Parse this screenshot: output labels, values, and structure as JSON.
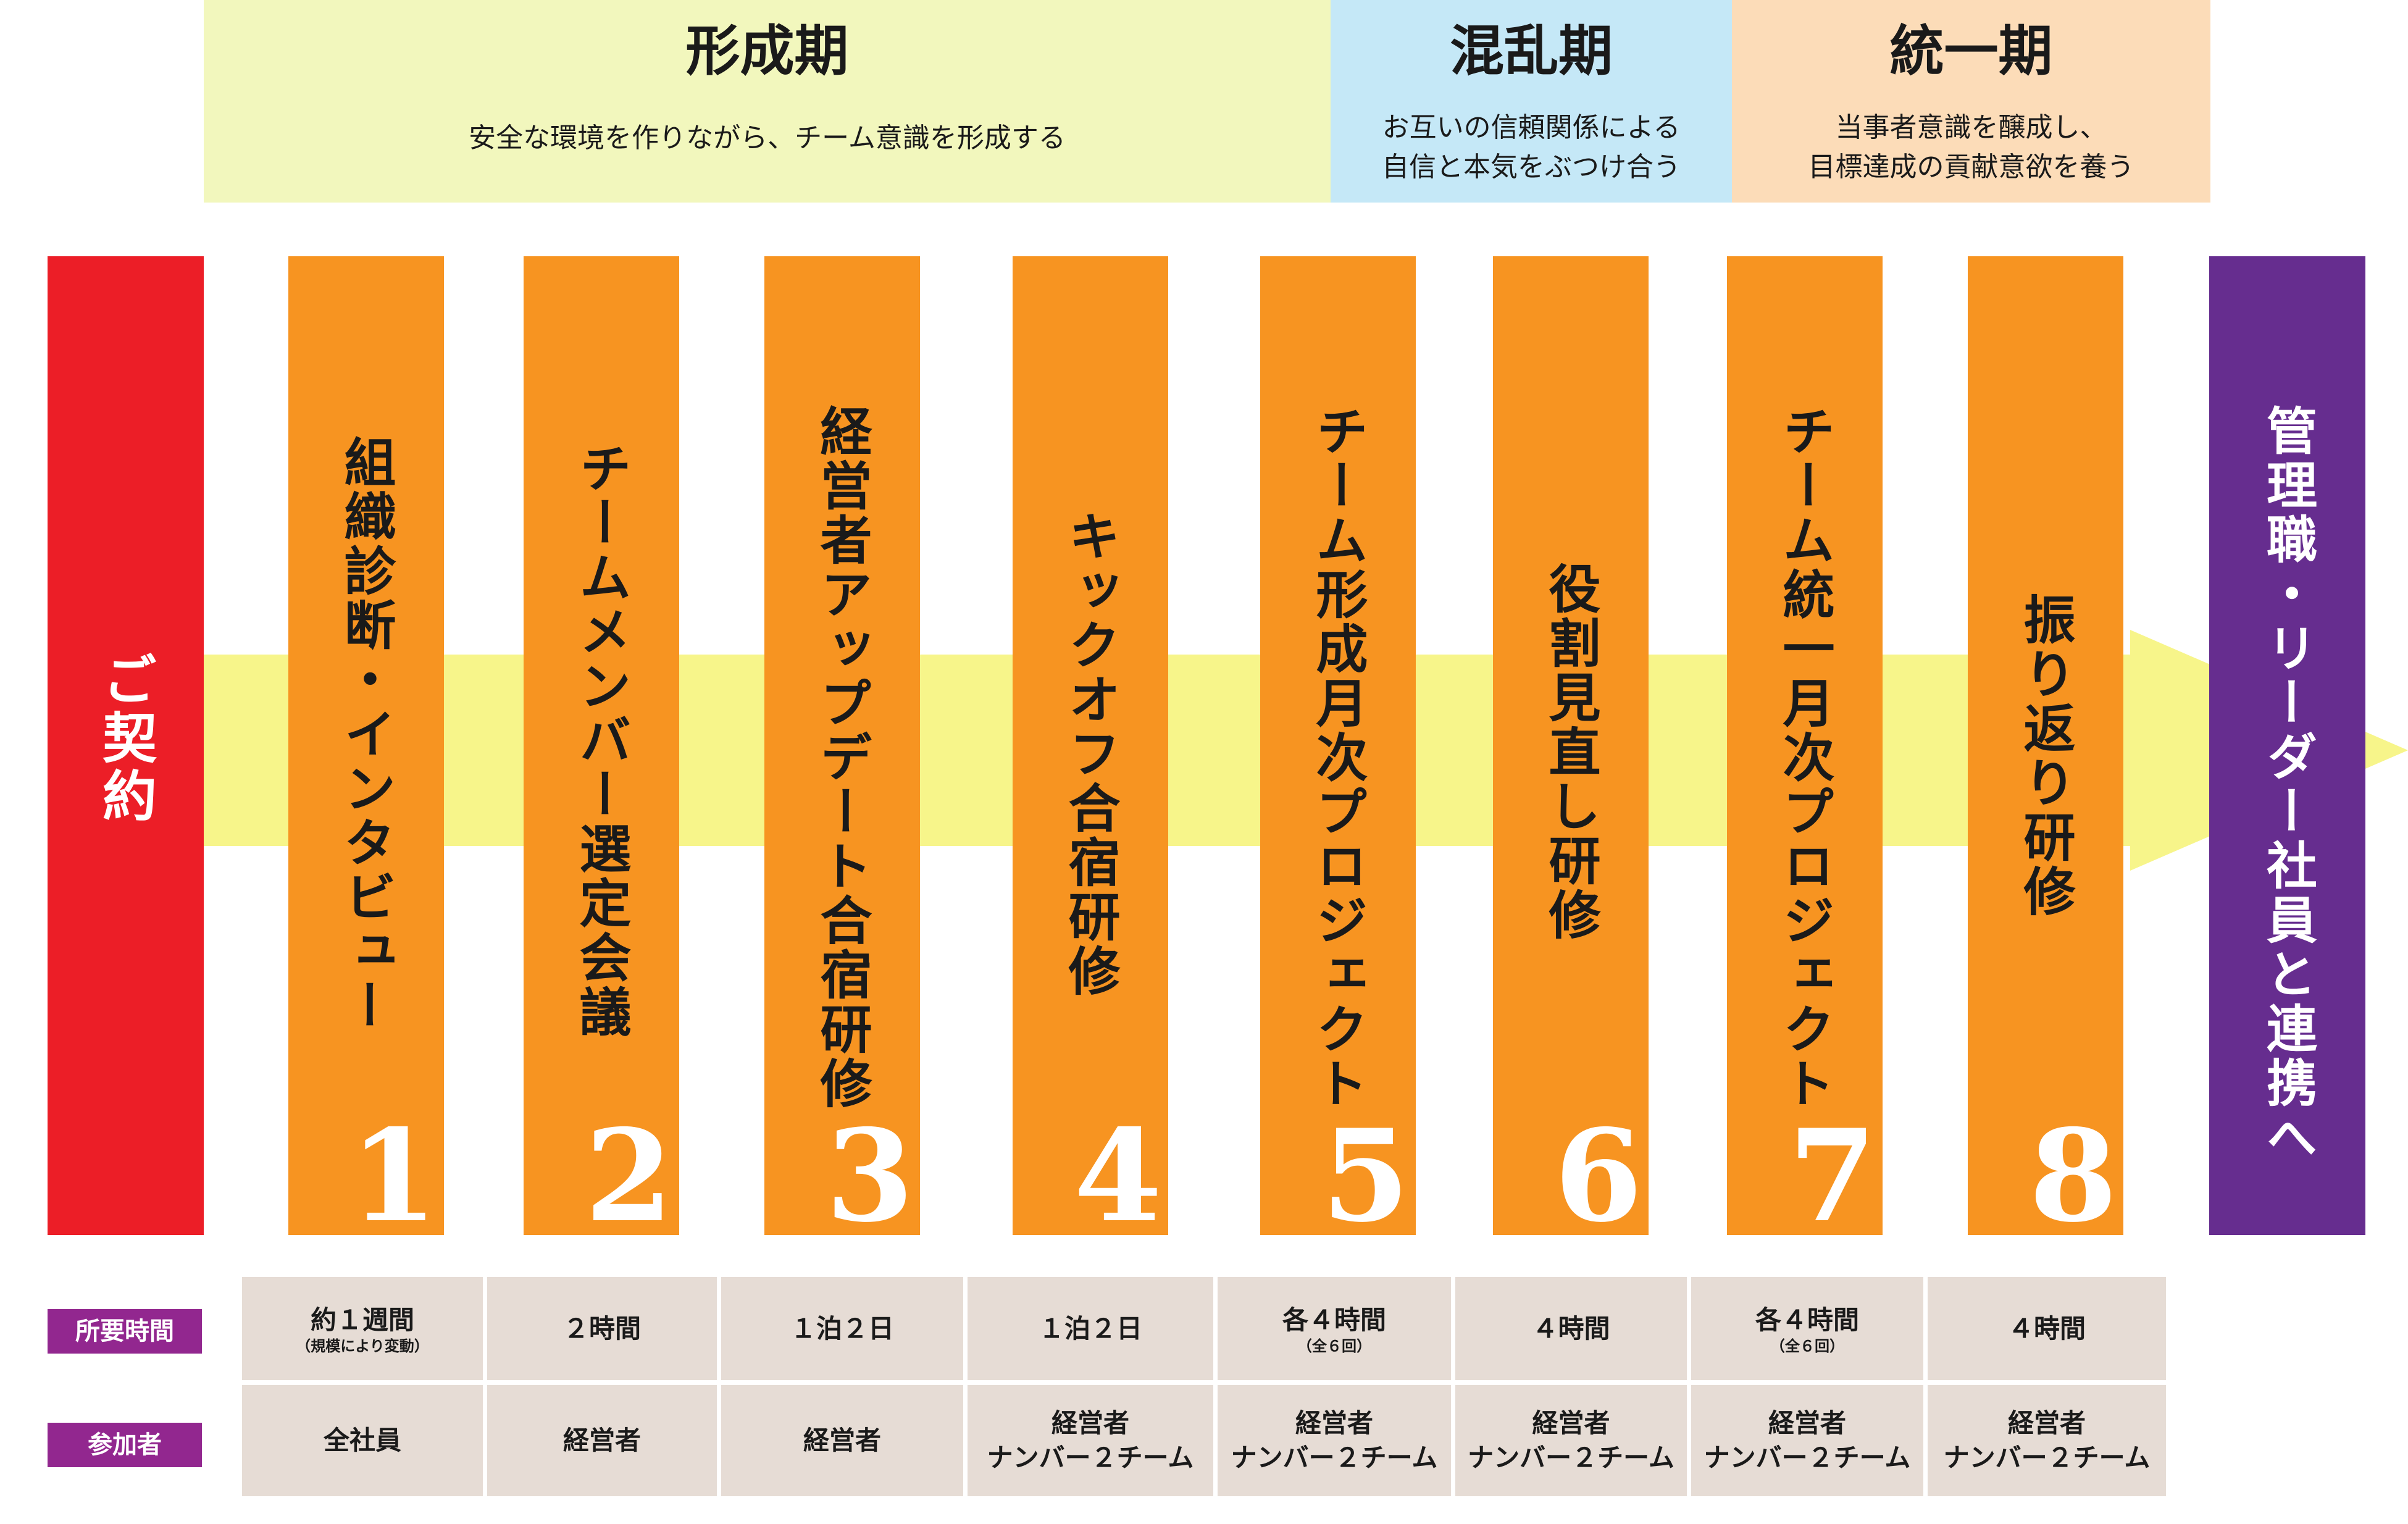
{
  "phases": [
    {
      "title": "形成期",
      "description": "安全な環境を作りながら、チーム意識を形成する",
      "color": "#f2f7bd"
    },
    {
      "title": "混乱期",
      "description": "お互いの信頼関係による\n自信と本気をぶつけ合う",
      "color": "#c5e8f7"
    },
    {
      "title": "統一期",
      "description": "当事者意識を醸成し、\n目標達成の貢献意欲を養う",
      "color": "#fcdcb8"
    }
  ],
  "contract": {
    "label": "ご契約",
    "color": "#ec1e27"
  },
  "final_step": {
    "label": "管理職・リーダー社員と連携へ",
    "color": "#662d8f"
  },
  "arrow_color": "#f7f58a",
  "step_color": "#f79421",
  "steps": [
    {
      "number": "1",
      "label": "組織診断・インタビュー"
    },
    {
      "number": "2",
      "label": "チームメンバー選定会議"
    },
    {
      "number": "3",
      "label": "経営者アップデート合宿研修"
    },
    {
      "number": "4",
      "label": "キックオフ合宿研修"
    },
    {
      "number": "5",
      "label": "チーム形成月次プロジェクト"
    },
    {
      "number": "6",
      "label": "役割見直し研修"
    },
    {
      "number": "7",
      "label": "チーム統一月次プロジェクト"
    },
    {
      "number": "8",
      "label": "振り返り研修"
    }
  ],
  "table": {
    "label_color": "#92278f",
    "cell_color": "#e6dcd5",
    "duration_label": "所要時間",
    "participants_label": "参加者",
    "durations": [
      {
        "main": "約１週間",
        "sub": "（規模により変動）"
      },
      {
        "main": "２時間",
        "sub": ""
      },
      {
        "main": "１泊２日",
        "sub": ""
      },
      {
        "main": "１泊２日",
        "sub": ""
      },
      {
        "main": "各４時間",
        "sub": "（全６回）"
      },
      {
        "main": "４時間",
        "sub": ""
      },
      {
        "main": "各４時間",
        "sub": "（全６回）"
      },
      {
        "main": "４時間",
        "sub": ""
      }
    ],
    "participants": [
      {
        "line1": "全社員",
        "line2": ""
      },
      {
        "line1": "経営者",
        "line2": ""
      },
      {
        "line1": "経営者",
        "line2": ""
      },
      {
        "line1": "経営者",
        "line2": "ナンバー２チーム"
      },
      {
        "line1": "経営者",
        "line2": "ナンバー２チーム"
      },
      {
        "line1": "経営者",
        "line2": "ナンバー２チーム"
      },
      {
        "line1": "経営者",
        "line2": "ナンバー２チーム"
      },
      {
        "line1": "経営者",
        "line2": "ナンバー２チーム"
      }
    ]
  }
}
